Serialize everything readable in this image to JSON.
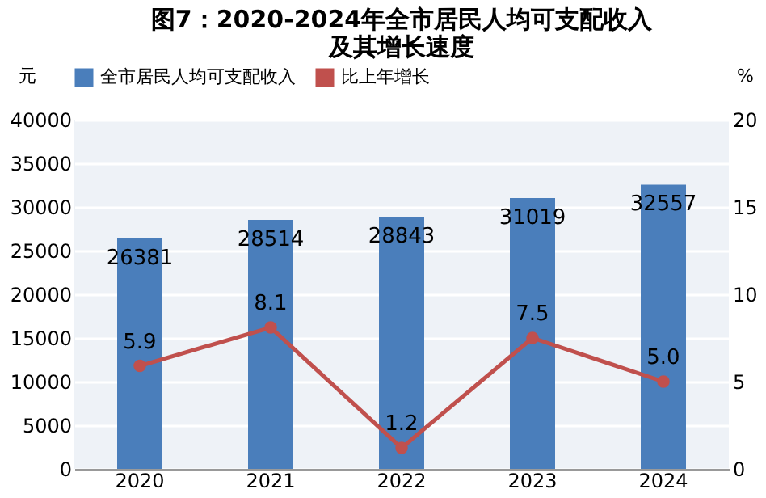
{
  "chart_data": {
    "type": "bar",
    "title": "图7：2020-2024年全市居民人均可支配收入及其增长速度",
    "categories": [
      "2020",
      "2021",
      "2022",
      "2023",
      "2024"
    ],
    "series": [
      {
        "name": "全市居民人均可支配收入",
        "color": "#4a7ebb",
        "values": [
          26381,
          28514,
          28843,
          31019,
          32557
        ]
      },
      {
        "name": "比上年增长",
        "type": "line",
        "axis": "y2",
        "color": "#c0504d",
        "marker": "circle",
        "values": [
          5.9,
          8.1,
          1.2,
          7.5,
          5.0
        ],
        "value_labels": [
          "5.9",
          "8.1",
          "1.2",
          "7.5",
          "5.0"
        ]
      }
    ],
    "ylabel": "元",
    "y2label": "%",
    "ylim": [
      0,
      40000
    ],
    "yticks": [
      0,
      5000,
      10000,
      15000,
      20000,
      25000,
      30000,
      35000,
      40000
    ],
    "y2lim": [
      0,
      20
    ],
    "y2ticks": [
      0,
      5,
      10,
      15,
      20
    ],
    "data_labels": true,
    "grid": "y",
    "legend": "top"
  }
}
